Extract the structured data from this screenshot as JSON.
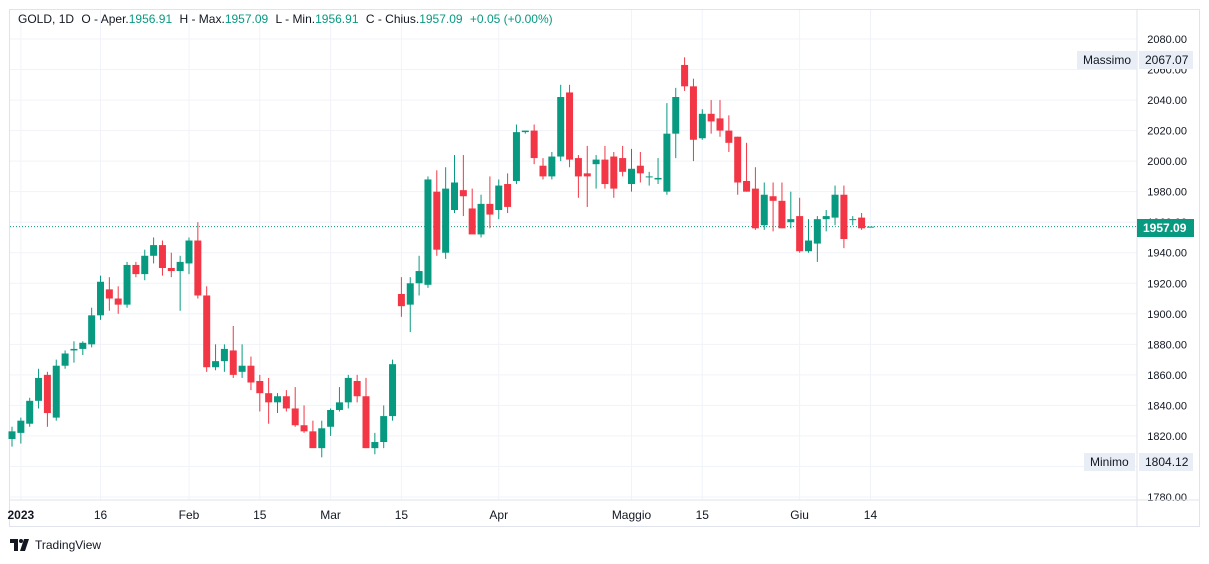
{
  "legend": {
    "symbol": "GOLD",
    "interval": "1D",
    "open_label": "O - Aper.",
    "open_value": "1956.91",
    "high_label": "H - Max.",
    "high_value": "1957.09",
    "low_label": "L - Min.",
    "low_value": "1956.91",
    "close_label": "C - Chius.",
    "close_value": "1957.09",
    "change": "+0.05 (+0.00%)"
  },
  "branding": {
    "name": "TradingView"
  },
  "markers": {
    "high_label": "Massimo",
    "high_value": "2067.07",
    "low_label": "Minimo",
    "low_value": "1804.12",
    "last_price": "1957.09"
  },
  "colors": {
    "up": "#089981",
    "down": "#f23645",
    "grid": "#f0f3fa",
    "axis_text": "#131722"
  },
  "chart_data": {
    "type": "candlestick",
    "ylim": [
      1775,
      2090
    ],
    "y_ticks": [
      1780,
      1800,
      1820,
      1840,
      1860,
      1880,
      1900,
      1920,
      1940,
      1960,
      1980,
      2000,
      2020,
      2040,
      2060,
      2080
    ],
    "x_ticks": [
      {
        "label": "2023",
        "index": 1
      },
      {
        "label": "16",
        "index": 10
      },
      {
        "label": "Feb",
        "index": 20
      },
      {
        "label": "15",
        "index": 28
      },
      {
        "label": "Mar",
        "index": 36
      },
      {
        "label": "15",
        "index": 44
      },
      {
        "label": "Apr",
        "index": 55
      },
      {
        "label": "Maggio",
        "index": 70
      },
      {
        "label": "15",
        "index": 78
      },
      {
        "label": "Giu",
        "index": 89
      },
      {
        "label": "14",
        "index": 97
      }
    ],
    "ohlc": [
      [
        1818,
        1826,
        1813,
        1823
      ],
      [
        1822,
        1832,
        1815,
        1830
      ],
      [
        1828,
        1845,
        1826,
        1843
      ],
      [
        1843,
        1864,
        1838,
        1858
      ],
      [
        1860,
        1862,
        1826,
        1835
      ],
      [
        1832,
        1870,
        1830,
        1866
      ],
      [
        1866,
        1876,
        1864,
        1874
      ],
      [
        1876,
        1882,
        1868,
        1877
      ],
      [
        1877,
        1882,
        1873,
        1881
      ],
      [
        1880,
        1904,
        1878,
        1899
      ],
      [
        1899,
        1925,
        1896,
        1921
      ],
      [
        1916,
        1924,
        1902,
        1910
      ],
      [
        1910,
        1918,
        1900,
        1906
      ],
      [
        1906,
        1934,
        1904,
        1932
      ],
      [
        1932,
        1934,
        1924,
        1926
      ],
      [
        1926,
        1942,
        1922,
        1938
      ],
      [
        1938,
        1950,
        1933,
        1945
      ],
      [
        1945,
        1948,
        1925,
        1930
      ],
      [
        1930,
        1940,
        1924,
        1928
      ],
      [
        1928,
        1938,
        1902,
        1934
      ],
      [
        1933,
        1950,
        1926,
        1948
      ],
      [
        1948,
        1960,
        1910,
        1912
      ],
      [
        1912,
        1918,
        1862,
        1865
      ],
      [
        1865,
        1880,
        1863,
        1869
      ],
      [
        1869,
        1880,
        1862,
        1877
      ],
      [
        1876,
        1892,
        1858,
        1860
      ],
      [
        1862,
        1880,
        1858,
        1866
      ],
      [
        1866,
        1872,
        1850,
        1855
      ],
      [
        1856,
        1860,
        1836,
        1848
      ],
      [
        1848,
        1858,
        1828,
        1842
      ],
      [
        1842,
        1848,
        1835,
        1846
      ],
      [
        1846,
        1850,
        1836,
        1838
      ],
      [
        1838,
        1852,
        1826,
        1827
      ],
      [
        1827,
        1840,
        1822,
        1823
      ],
      [
        1823,
        1830,
        1813,
        1812
      ],
      [
        1812,
        1830,
        1806,
        1825
      ],
      [
        1826,
        1838,
        1820,
        1837
      ],
      [
        1837,
        1852,
        1836,
        1842
      ],
      [
        1842,
        1860,
        1838,
        1858
      ],
      [
        1856,
        1860,
        1842,
        1846
      ],
      [
        1846,
        1858,
        1812,
        1812
      ],
      [
        1812,
        1822,
        1808,
        1816
      ],
      [
        1816,
        1840,
        1812,
        1833
      ],
      [
        1833,
        1870,
        1830,
        1867
      ],
      [
        1913,
        1924,
        1898,
        1905
      ],
      [
        1906,
        1924,
        1888,
        1920
      ],
      [
        1920,
        1938,
        1912,
        1928
      ],
      [
        1919,
        1990,
        1917,
        1988
      ],
      [
        1980,
        1994,
        1938,
        1942
      ],
      [
        1940,
        1996,
        1936,
        1982
      ],
      [
        1968,
        2004,
        1966,
        1986
      ],
      [
        1981,
        2004,
        1964,
        1977
      ],
      [
        1969,
        1982,
        1954,
        1952
      ],
      [
        1952,
        1978,
        1950,
        1972
      ],
      [
        1972,
        1990,
        1956,
        1965
      ],
      [
        1968,
        1988,
        1962,
        1984
      ],
      [
        1985,
        1992,
        1966,
        1970
      ],
      [
        1987,
        2024,
        1985,
        2019
      ],
      [
        2019,
        2020,
        2018,
        2020
      ],
      [
        2020,
        2024,
        1998,
        2002
      ],
      [
        1997,
        2002,
        1988,
        1990
      ],
      [
        1990,
        2006,
        1988,
        2003
      ],
      [
        2003,
        2050,
        2000,
        2042
      ],
      [
        2045,
        2050,
        1996,
        2001
      ],
      [
        2002,
        2004,
        1976,
        1990
      ],
      [
        1992,
        2010,
        1970,
        1990
      ],
      [
        1998,
        2004,
        1982,
        2001
      ],
      [
        2001,
        2010,
        1982,
        1985
      ],
      [
        2003,
        2006,
        1976,
        1982
      ],
      [
        2002,
        2010,
        1990,
        1993
      ],
      [
        1985,
        2008,
        1980,
        1995
      ],
      [
        1997,
        2006,
        1986,
        1992
      ],
      [
        1990,
        1993,
        1984,
        1990
      ],
      [
        1988,
        2002,
        1985,
        1989
      ],
      [
        1980,
        2038,
        1978,
        2018
      ],
      [
        2018,
        2048,
        2002,
        2042
      ],
      [
        2063,
        2068,
        2046,
        2049
      ],
      [
        2049,
        2054,
        2000,
        2014
      ],
      [
        2015,
        2034,
        2014,
        2031
      ],
      [
        2031,
        2040,
        2018,
        2026
      ],
      [
        2028,
        2040,
        2016,
        2020
      ],
      [
        2020,
        2030,
        2006,
        2012
      ],
      [
        2016,
        2016,
        1978,
        1986
      ],
      [
        1987,
        2012,
        1980,
        1980
      ],
      [
        1982,
        1996,
        1955,
        1956
      ],
      [
        1958,
        1986,
        1955,
        1978
      ],
      [
        1977,
        1986,
        1954,
        1974
      ],
      [
        1974,
        1986,
        1956,
        1956
      ],
      [
        1960,
        1980,
        1956,
        1962
      ],
      [
        1964,
        1976,
        1940,
        1941
      ],
      [
        1941,
        1962,
        1940,
        1948
      ],
      [
        1946,
        1964,
        1934,
        1962
      ],
      [
        1962,
        1968,
        1954,
        1964
      ],
      [
        1963,
        1984,
        1958,
        1978
      ],
      [
        1978,
        1984,
        1943,
        1949
      ],
      [
        1962,
        1964,
        1958,
        1962
      ],
      [
        1963,
        1966,
        1955,
        1956
      ],
      [
        1956.91,
        1957.09,
        1956.91,
        1957.09
      ]
    ]
  }
}
